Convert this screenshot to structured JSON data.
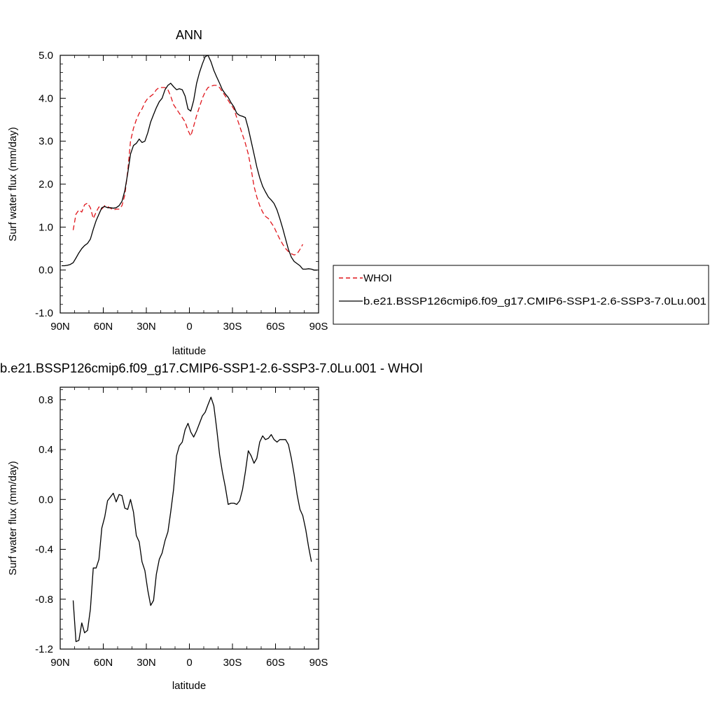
{
  "chart_data": [
    {
      "type": "line",
      "title": "ANN",
      "xlabel": "latitude",
      "ylabel": "Surf water flux (mm/day)",
      "xlim": [
        90,
        -90
      ],
      "ylim": [
        -1.0,
        5.0
      ],
      "x_ticks": [
        90,
        60,
        30,
        0,
        -30,
        -60,
        -90
      ],
      "x_tick_labels": [
        "90N",
        "60N",
        "30N",
        "0",
        "30S",
        "60S",
        "90S"
      ],
      "y_ticks": [
        -1.0,
        0.0,
        1.0,
        2.0,
        3.0,
        4.0,
        5.0
      ],
      "y_tick_labels": [
        "-1.0",
        "0.0",
        "1.0",
        "2.0",
        "3.0",
        "4.0",
        "5.0"
      ],
      "legend_placement": "right",
      "series": [
        {
          "name": "WHOI",
          "color": "#e0161c",
          "dash": "dashed",
          "points": [
            [
              81,
              0.93
            ],
            [
              79,
              1.3
            ],
            [
              77,
              1.4
            ],
            [
              75,
              1.35
            ],
            [
              73,
              1.52
            ],
            [
              71,
              1.56
            ],
            [
              69,
              1.45
            ],
            [
              67,
              1.2
            ],
            [
              65,
              1.35
            ],
            [
              63,
              1.47
            ],
            [
              61,
              1.42
            ],
            [
              59,
              1.5
            ],
            [
              57,
              1.48
            ],
            [
              55,
              1.44
            ],
            [
              53,
              1.4
            ],
            [
              51,
              1.42
            ],
            [
              49,
              1.42
            ],
            [
              47,
              1.5
            ],
            [
              45,
              1.75
            ],
            [
              43,
              2.3
            ],
            [
              41,
              3.0
            ],
            [
              39,
              3.3
            ],
            [
              37,
              3.5
            ],
            [
              35,
              3.65
            ],
            [
              33,
              3.75
            ],
            [
              31,
              3.9
            ],
            [
              29,
              4.0
            ],
            [
              27,
              4.05
            ],
            [
              25,
              4.1
            ],
            [
              23,
              4.2
            ],
            [
              21,
              4.25
            ],
            [
              19,
              4.25
            ],
            [
              17,
              4.25
            ],
            [
              15,
              4.2
            ],
            [
              13,
              4.05
            ],
            [
              11,
              3.85
            ],
            [
              9,
              3.75
            ],
            [
              7,
              3.65
            ],
            [
              5,
              3.55
            ],
            [
              3,
              3.45
            ],
            [
              1,
              3.25
            ],
            [
              -1,
              3.12
            ],
            [
              -3,
              3.35
            ],
            [
              -5,
              3.6
            ],
            [
              -7,
              3.8
            ],
            [
              -9,
              4.0
            ],
            [
              -11,
              4.15
            ],
            [
              -13,
              4.25
            ],
            [
              -15,
              4.28
            ],
            [
              -17,
              4.3
            ],
            [
              -19,
              4.3
            ],
            [
              -21,
              4.25
            ],
            [
              -23,
              4.15
            ],
            [
              -25,
              4.05
            ],
            [
              -27,
              3.95
            ],
            [
              -29,
              3.85
            ],
            [
              -31,
              3.75
            ],
            [
              -33,
              3.55
            ],
            [
              -35,
              3.35
            ],
            [
              -37,
              3.15
            ],
            [
              -39,
              2.95
            ],
            [
              -41,
              2.7
            ],
            [
              -43,
              2.35
            ],
            [
              -45,
              1.95
            ],
            [
              -47,
              1.7
            ],
            [
              -49,
              1.5
            ],
            [
              -51,
              1.35
            ],
            [
              -53,
              1.25
            ],
            [
              -55,
              1.2
            ],
            [
              -57,
              1.1
            ],
            [
              -59,
              1.0
            ],
            [
              -61,
              0.85
            ],
            [
              -63,
              0.72
            ],
            [
              -65,
              0.6
            ],
            [
              -67,
              0.5
            ],
            [
              -69,
              0.43
            ],
            [
              -71,
              0.38
            ],
            [
              -73,
              0.35
            ],
            [
              -75,
              0.38
            ],
            [
              -77,
              0.48
            ],
            [
              -79,
              0.6
            ]
          ]
        },
        {
          "name": "b.e21.BSSP126cmip6.f09_g17.CMIP6-SSP1-2.6-SSP3-7.0Lu.001",
          "color": "#000000",
          "dash": "solid",
          "points": [
            [
              89,
              0.1
            ],
            [
              87,
              0.1
            ],
            [
              85,
              0.11
            ],
            [
              83,
              0.13
            ],
            [
              81,
              0.17
            ],
            [
              79,
              0.28
            ],
            [
              77,
              0.4
            ],
            [
              75,
              0.5
            ],
            [
              73,
              0.57
            ],
            [
              71,
              0.62
            ],
            [
              69,
              0.72
            ],
            [
              67,
              0.95
            ],
            [
              65,
              1.15
            ],
            [
              63,
              1.3
            ],
            [
              61,
              1.45
            ],
            [
              59,
              1.48
            ],
            [
              57,
              1.45
            ],
            [
              55,
              1.45
            ],
            [
              53,
              1.44
            ],
            [
              51,
              1.45
            ],
            [
              49,
              1.5
            ],
            [
              47,
              1.6
            ],
            [
              45,
              1.85
            ],
            [
              43,
              2.25
            ],
            [
              41,
              2.7
            ],
            [
              39,
              2.9
            ],
            [
              37,
              2.95
            ],
            [
              35,
              3.05
            ],
            [
              33,
              2.97
            ],
            [
              31,
              3.0
            ],
            [
              29,
              3.2
            ],
            [
              27,
              3.45
            ],
            [
              25,
              3.62
            ],
            [
              23,
              3.78
            ],
            [
              21,
              3.92
            ],
            [
              19,
              4.0
            ],
            [
              17,
              4.2
            ],
            [
              15,
              4.3
            ],
            [
              13,
              4.35
            ],
            [
              11,
              4.27
            ],
            [
              9,
              4.2
            ],
            [
              7,
              4.22
            ],
            [
              5,
              4.2
            ],
            [
              3,
              4.05
            ],
            [
              1,
              3.75
            ],
            [
              -1,
              3.7
            ],
            [
              -3,
              3.95
            ],
            [
              -5,
              4.35
            ],
            [
              -7,
              4.6
            ],
            [
              -9,
              4.8
            ],
            [
              -11,
              4.97
            ],
            [
              -13,
              5.0
            ],
            [
              -15,
              4.85
            ],
            [
              -17,
              4.65
            ],
            [
              -19,
              4.5
            ],
            [
              -21,
              4.35
            ],
            [
              -23,
              4.2
            ],
            [
              -25,
              4.1
            ],
            [
              -27,
              4.02
            ],
            [
              -29,
              3.9
            ],
            [
              -31,
              3.8
            ],
            [
              -33,
              3.65
            ],
            [
              -35,
              3.6
            ],
            [
              -37,
              3.58
            ],
            [
              -39,
              3.55
            ],
            [
              -41,
              3.3
            ],
            [
              -43,
              3.0
            ],
            [
              -45,
              2.7
            ],
            [
              -47,
              2.4
            ],
            [
              -49,
              2.15
            ],
            [
              -51,
              1.95
            ],
            [
              -53,
              1.82
            ],
            [
              -55,
              1.7
            ],
            [
              -57,
              1.63
            ],
            [
              -59,
              1.55
            ],
            [
              -61,
              1.4
            ],
            [
              -63,
              1.2
            ],
            [
              -65,
              0.97
            ],
            [
              -67,
              0.72
            ],
            [
              -69,
              0.48
            ],
            [
              -71,
              0.3
            ],
            [
              -73,
              0.2
            ],
            [
              -75,
              0.15
            ],
            [
              -77,
              0.1
            ],
            [
              -79,
              0.02
            ],
            [
              -81,
              0.02
            ],
            [
              -83,
              0.03
            ],
            [
              -85,
              0.02
            ],
            [
              -87,
              0.0
            ],
            [
              -89,
              0.0
            ]
          ]
        }
      ]
    },
    {
      "type": "line",
      "title": "b.e21.BSSP126cmip6.f09_g17.CMIP6-SSP1-2.6-SSP3-7.0Lu.001 - WHOI",
      "xlabel": "latitude",
      "ylabel": "Surf water flux (mm/day)",
      "xlim": [
        90,
        -90
      ],
      "ylim": [
        -1.2,
        0.9
      ],
      "x_ticks": [
        90,
        60,
        30,
        0,
        -30,
        -60,
        -90
      ],
      "x_tick_labels": [
        "90N",
        "60N",
        "30N",
        "0",
        "30S",
        "60S",
        "90S"
      ],
      "y_ticks": [
        -1.2,
        -0.8,
        -0.4,
        0.0,
        0.4,
        0.8
      ],
      "y_tick_labels": [
        "-1.2",
        "-0.8",
        "-0.4",
        "0.0",
        "0.4",
        "0.8"
      ],
      "series": [
        {
          "color": "#000000",
          "dash": "solid",
          "points": [
            [
              81,
              -0.81
            ],
            [
              79,
              -1.14
            ],
            [
              77,
              -1.13
            ],
            [
              75,
              -0.99
            ],
            [
              73,
              -1.07
            ],
            [
              71,
              -1.05
            ],
            [
              69,
              -0.88
            ],
            [
              67,
              -0.55
            ],
            [
              65,
              -0.55
            ],
            [
              63,
              -0.48
            ],
            [
              61,
              -0.23
            ],
            [
              59,
              -0.14
            ],
            [
              57,
              -0.01
            ],
            [
              55,
              0.02
            ],
            [
              53,
              0.05
            ],
            [
              51,
              -0.02
            ],
            [
              49,
              0.04
            ],
            [
              47,
              0.03
            ],
            [
              45,
              -0.07
            ],
            [
              43,
              -0.08
            ],
            [
              41,
              0.0
            ],
            [
              39,
              -0.1
            ],
            [
              37,
              -0.29
            ],
            [
              35,
              -0.34
            ],
            [
              33,
              -0.5
            ],
            [
              31,
              -0.57
            ],
            [
              29,
              -0.73
            ],
            [
              27,
              -0.85
            ],
            [
              25,
              -0.81
            ],
            [
              23,
              -0.6
            ],
            [
              21,
              -0.48
            ],
            [
              19,
              -0.43
            ],
            [
              17,
              -0.33
            ],
            [
              15,
              -0.26
            ],
            [
              13,
              -0.1
            ],
            [
              11,
              0.08
            ],
            [
              9,
              0.35
            ],
            [
              7,
              0.43
            ],
            [
              5,
              0.46
            ],
            [
              3,
              0.56
            ],
            [
              1,
              0.61
            ],
            [
              -1,
              0.54
            ],
            [
              -3,
              0.5
            ],
            [
              -5,
              0.55
            ],
            [
              -7,
              0.61
            ],
            [
              -9,
              0.67
            ],
            [
              -11,
              0.7
            ],
            [
              -13,
              0.76
            ],
            [
              -15,
              0.82
            ],
            [
              -17,
              0.75
            ],
            [
              -19,
              0.57
            ],
            [
              -21,
              0.36
            ],
            [
              -23,
              0.22
            ],
            [
              -25,
              0.1
            ],
            [
              -27,
              -0.04
            ],
            [
              -29,
              -0.03
            ],
            [
              -31,
              -0.03
            ],
            [
              -33,
              -0.04
            ],
            [
              -35,
              -0.01
            ],
            [
              -37,
              0.08
            ],
            [
              -39,
              0.22
            ],
            [
              -41,
              0.39
            ],
            [
              -43,
              0.35
            ],
            [
              -45,
              0.29
            ],
            [
              -47,
              0.33
            ],
            [
              -49,
              0.46
            ],
            [
              -51,
              0.51
            ],
            [
              -53,
              0.48
            ],
            [
              -55,
              0.49
            ],
            [
              -57,
              0.52
            ],
            [
              -59,
              0.48
            ],
            [
              -61,
              0.46
            ],
            [
              -63,
              0.48
            ],
            [
              -65,
              0.48
            ],
            [
              -67,
              0.48
            ],
            [
              -69,
              0.44
            ],
            [
              -71,
              0.33
            ],
            [
              -73,
              0.2
            ],
            [
              -75,
              0.04
            ],
            [
              -77,
              -0.08
            ],
            [
              -79,
              -0.13
            ],
            [
              -81,
              -0.24
            ],
            [
              -83,
              -0.38
            ],
            [
              -85,
              -0.5
            ]
          ]
        }
      ]
    }
  ]
}
